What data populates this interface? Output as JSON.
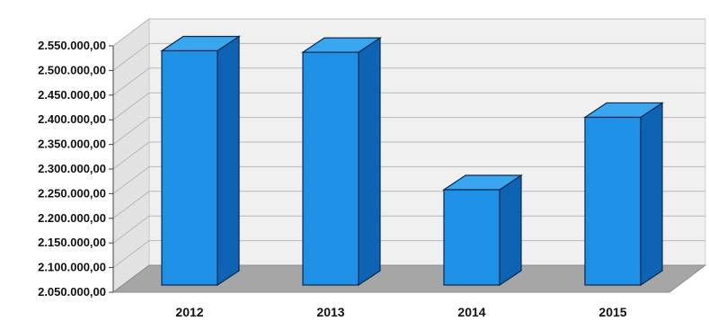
{
  "chart_data": {
    "type": "bar",
    "title": "",
    "xlabel": "",
    "ylabel": "",
    "categories": [
      "2012",
      "2013",
      "2014",
      "2015"
    ],
    "values": [
      2540000,
      2537000,
      2258000,
      2405000
    ],
    "ylim": [
      2050000,
      2550000
    ],
    "yticks": [
      2050000,
      2100000,
      2150000,
      2200000,
      2250000,
      2300000,
      2350000,
      2400000,
      2450000,
      2500000,
      2550000
    ],
    "ytick_labels": [
      "2.050.000,00",
      "2.100.000,00",
      "2.150.000,00",
      "2.200.000,00",
      "2.250.000,00",
      "2.300.000,00",
      "2.350.000,00",
      "2.400.000,00",
      "2.450.000,00",
      "2.500.000,00",
      "2.550.000,00"
    ],
    "grid": true,
    "three_d": true,
    "colors": {
      "bar_front": "#1e90e6",
      "bar_top": "#3aa6f0",
      "bar_side": "#0f63b4",
      "floor": "#a6a6a6",
      "wall": "#f0f0f0",
      "grid": "#b8b8b8"
    }
  }
}
